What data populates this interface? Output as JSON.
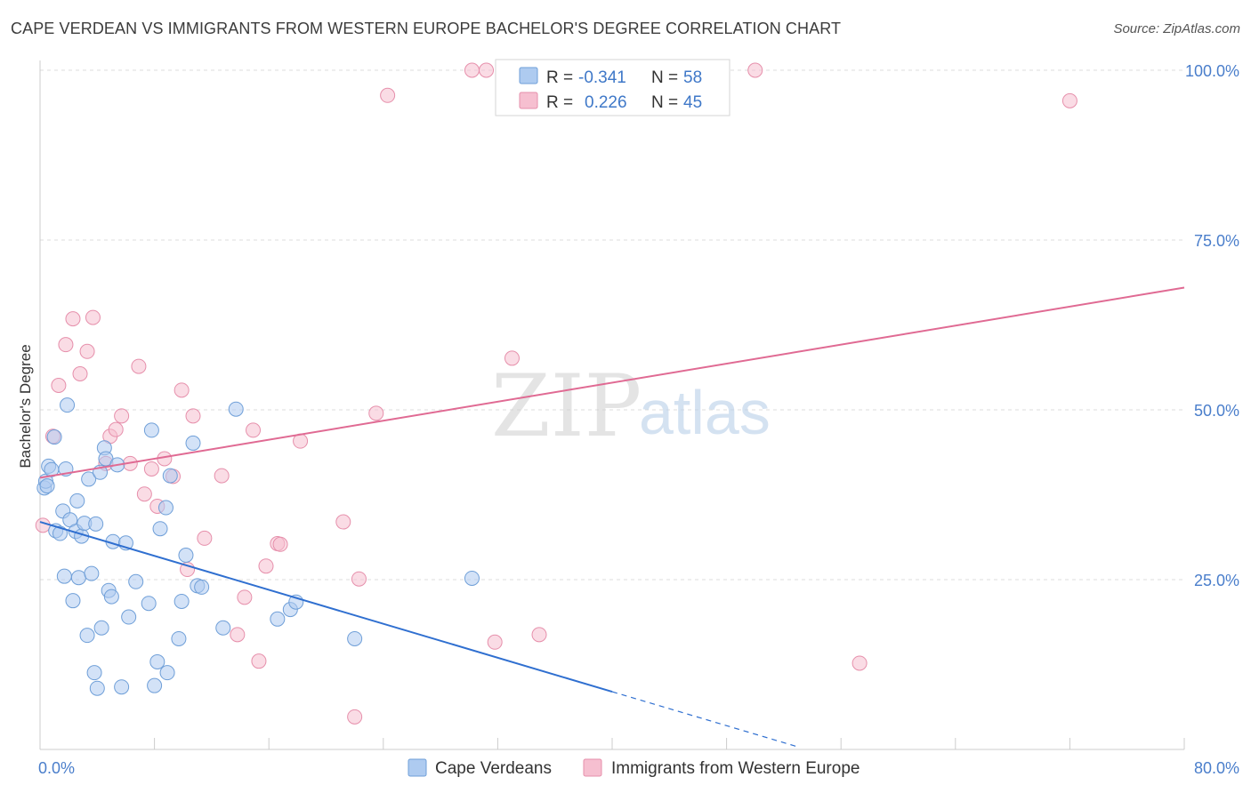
{
  "header": {
    "title": "CAPE VERDEAN VS IMMIGRANTS FROM WESTERN EUROPE BACHELOR'S DEGREE CORRELATION CHART",
    "source": "Source: ZipAtlas.com"
  },
  "watermark": {
    "zip": "ZIP",
    "atlas": "atlas"
  },
  "legend_top": {
    "rows": [
      {
        "r_label": "R =",
        "r_value": "-0.341",
        "n_label": "N =",
        "n_value": "58"
      },
      {
        "r_label": "R =",
        "r_value": "0.226",
        "n_label": "N =",
        "n_value": "45"
      }
    ]
  },
  "legend_bottom": {
    "series1": "Cape Verdeans",
    "series2": "Immigrants from Western Europe"
  },
  "chart_data": {
    "type": "scatter",
    "title": "CAPE VERDEAN VS IMMIGRANTS FROM WESTERN EUROPE BACHELOR'S DEGREE CORRELATION CHART",
    "xlabel": "",
    "ylabel": "Bachelor's Degree",
    "xlim": [
      0,
      80
    ],
    "ylim": [
      0,
      100
    ],
    "x_tick_labels": [
      "0.0%",
      "80.0%"
    ],
    "y_ticks": [
      25,
      50,
      75,
      100
    ],
    "y_tick_labels": [
      "25.0%",
      "50.0%",
      "75.0%",
      "100.0%"
    ],
    "colors": {
      "series1_fill": "#aecbf0",
      "series1_stroke": "#6f9fd8",
      "series1_line": "#2f6fd0",
      "series2_fill": "#f6bfd0",
      "series2_stroke": "#e68fab",
      "series2_line": "#e06a93",
      "grid": "#dddddd",
      "axis": "#cccccc"
    },
    "series": [
      {
        "name": "Cape Verdeans",
        "r": -0.341,
        "n": 58,
        "trend": {
          "x0": 0,
          "y0": 33.5,
          "x1": 40,
          "y1": 8.5,
          "dash_to_x": 53
        },
        "points": [
          [
            0.3,
            38.5
          ],
          [
            0.4,
            39.5
          ],
          [
            0.5,
            38.8
          ],
          [
            0.6,
            41.7
          ],
          [
            0.8,
            41.2
          ],
          [
            1.0,
            46.0
          ],
          [
            1.1,
            32.2
          ],
          [
            1.4,
            31.8
          ],
          [
            1.6,
            35.1
          ],
          [
            1.7,
            25.5
          ],
          [
            1.8,
            41.3
          ],
          [
            1.9,
            50.7
          ],
          [
            2.1,
            33.8
          ],
          [
            2.3,
            21.9
          ],
          [
            2.5,
            32.1
          ],
          [
            2.6,
            36.6
          ],
          [
            2.7,
            25.3
          ],
          [
            2.9,
            31.4
          ],
          [
            3.1,
            33.3
          ],
          [
            3.3,
            16.8
          ],
          [
            3.4,
            39.8
          ],
          [
            3.6,
            25.9
          ],
          [
            3.8,
            11.3
          ],
          [
            3.9,
            33.2
          ],
          [
            4.2,
            40.8
          ],
          [
            4.3,
            17.9
          ],
          [
            4.5,
            44.4
          ],
          [
            4.6,
            42.8
          ],
          [
            4.8,
            23.4
          ],
          [
            5.0,
            22.5
          ],
          [
            5.1,
            30.6
          ],
          [
            5.4,
            41.9
          ],
          [
            5.7,
            9.2
          ],
          [
            6.0,
            30.4
          ],
          [
            6.2,
            19.5
          ],
          [
            6.7,
            24.7
          ],
          [
            7.6,
            21.5
          ],
          [
            7.8,
            47.0
          ],
          [
            8.0,
            9.4
          ],
          [
            8.2,
            12.9
          ],
          [
            8.4,
            32.5
          ],
          [
            8.8,
            35.6
          ],
          [
            8.9,
            11.3
          ],
          [
            9.1,
            40.3
          ],
          [
            9.7,
            16.3
          ],
          [
            9.9,
            21.8
          ],
          [
            10.2,
            28.6
          ],
          [
            10.7,
            45.1
          ],
          [
            11.0,
            24.1
          ],
          [
            11.3,
            23.9
          ],
          [
            12.8,
            17.9
          ],
          [
            13.7,
            50.1
          ],
          [
            16.6,
            19.2
          ],
          [
            17.5,
            20.6
          ],
          [
            17.9,
            21.7
          ],
          [
            22.0,
            16.3
          ],
          [
            30.2,
            25.2
          ],
          [
            4.0,
            9.0
          ]
        ]
      },
      {
        "name": "Immigrants from Western Europe",
        "r": 0.226,
        "n": 45,
        "trend": {
          "x0": 0,
          "y0": 40.0,
          "x1": 80,
          "y1": 68.0
        },
        "points": [
          [
            0.2,
            33.0
          ],
          [
            0.9,
            46.1
          ],
          [
            1.3,
            53.6
          ],
          [
            1.8,
            59.6
          ],
          [
            2.3,
            63.4
          ],
          [
            2.8,
            55.3
          ],
          [
            3.3,
            58.6
          ],
          [
            3.7,
            63.6
          ],
          [
            4.6,
            42.1
          ],
          [
            4.9,
            46.1
          ],
          [
            5.3,
            47.1
          ],
          [
            5.7,
            49.1
          ],
          [
            6.3,
            42.1
          ],
          [
            6.9,
            56.4
          ],
          [
            7.3,
            37.6
          ],
          [
            7.8,
            41.3
          ],
          [
            8.2,
            35.8
          ],
          [
            8.7,
            42.8
          ],
          [
            9.3,
            40.2
          ],
          [
            9.9,
            52.9
          ],
          [
            10.3,
            26.5
          ],
          [
            10.7,
            49.1
          ],
          [
            11.5,
            31.1
          ],
          [
            12.7,
            40.3
          ],
          [
            13.8,
            16.9
          ],
          [
            14.3,
            22.4
          ],
          [
            14.9,
            47.0
          ],
          [
            15.3,
            13.0
          ],
          [
            15.8,
            27.0
          ],
          [
            16.6,
            30.3
          ],
          [
            16.8,
            30.2
          ],
          [
            18.2,
            45.4
          ],
          [
            21.2,
            33.5
          ],
          [
            22.0,
            4.8
          ],
          [
            22.3,
            25.1
          ],
          [
            23.5,
            49.5
          ],
          [
            24.3,
            96.3
          ],
          [
            30.2,
            100.0
          ],
          [
            31.2,
            100.0
          ],
          [
            31.8,
            15.8
          ],
          [
            33.0,
            57.6
          ],
          [
            34.9,
            16.9
          ],
          [
            50.0,
            100.0
          ],
          [
            57.3,
            12.7
          ],
          [
            72.0,
            95.5
          ]
        ]
      }
    ]
  }
}
